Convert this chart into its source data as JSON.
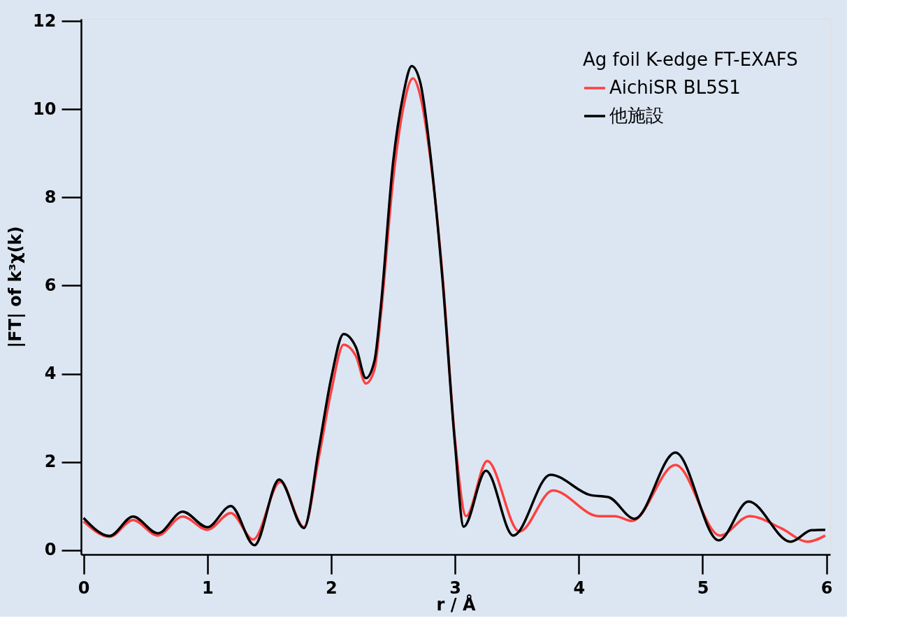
{
  "chart_data": {
    "type": "line",
    "xlabel": "r / Å",
    "ylabel": "|FT| of k³χ(k)",
    "legend_title": "Ag foil K-edge FT-EXAFS",
    "legend": "top right",
    "grid": false,
    "marker": "none",
    "line_style": "solid",
    "xlim": [
      -0.02,
      6.03
    ],
    "ylim": [
      -0.1,
      12.05
    ],
    "xticks": [
      0,
      1,
      2,
      3,
      4,
      5,
      6
    ],
    "yticks": [
      0,
      2,
      4,
      6,
      8,
      10,
      12
    ],
    "series": [
      {
        "name": "AichiSR BL5S1",
        "color": "#ff4040",
        "x": [
          0,
          0.21,
          0.4,
          0.6,
          0.8,
          1.0,
          1.19,
          1.37,
          1.59,
          1.78,
          1.9,
          2.0,
          2.1,
          2.2,
          2.28,
          2.35,
          2.4,
          2.5,
          2.58,
          2.66,
          2.72,
          2.8,
          2.9,
          3.0,
          3.09,
          3.26,
          3.52,
          3.79,
          4.16,
          4.29,
          4.43,
          4.78,
          5.14,
          5.38,
          5.63,
          5.85,
          5.99
        ],
        "values": [
          0.65,
          0.3,
          0.68,
          0.33,
          0.76,
          0.46,
          0.84,
          0.24,
          1.55,
          0.52,
          2.1,
          3.6,
          4.66,
          4.4,
          3.78,
          4.1,
          5.3,
          8.4,
          10.0,
          10.7,
          10.3,
          8.9,
          6.2,
          2.5,
          0.77,
          2.02,
          0.42,
          1.35,
          0.77,
          0.77,
          0.66,
          1.93,
          0.33,
          0.77,
          0.5,
          0.19,
          0.33
        ]
      },
      {
        "name": "他施設",
        "color": "#000000",
        "x": [
          0,
          0.21,
          0.4,
          0.6,
          0.8,
          1.0,
          1.19,
          1.38,
          1.58,
          1.78,
          1.9,
          2.0,
          2.1,
          2.2,
          2.28,
          2.35,
          2.4,
          2.5,
          2.58,
          2.65,
          2.72,
          2.8,
          2.9,
          3.0,
          3.07,
          3.25,
          3.47,
          3.77,
          4.09,
          4.24,
          4.45,
          4.78,
          5.13,
          5.37,
          5.71,
          5.88,
          5.99
        ],
        "values": [
          0.73,
          0.32,
          0.76,
          0.38,
          0.87,
          0.52,
          1.0,
          0.11,
          1.6,
          0.5,
          2.3,
          3.9,
          4.9,
          4.6,
          3.9,
          4.3,
          5.5,
          8.8,
          10.3,
          10.98,
          10.6,
          9.0,
          6.1,
          2.4,
          0.53,
          1.8,
          0.33,
          1.71,
          1.25,
          1.2,
          0.71,
          2.21,
          0.22,
          1.1,
          0.19,
          0.45,
          0.46
        ]
      }
    ]
  }
}
